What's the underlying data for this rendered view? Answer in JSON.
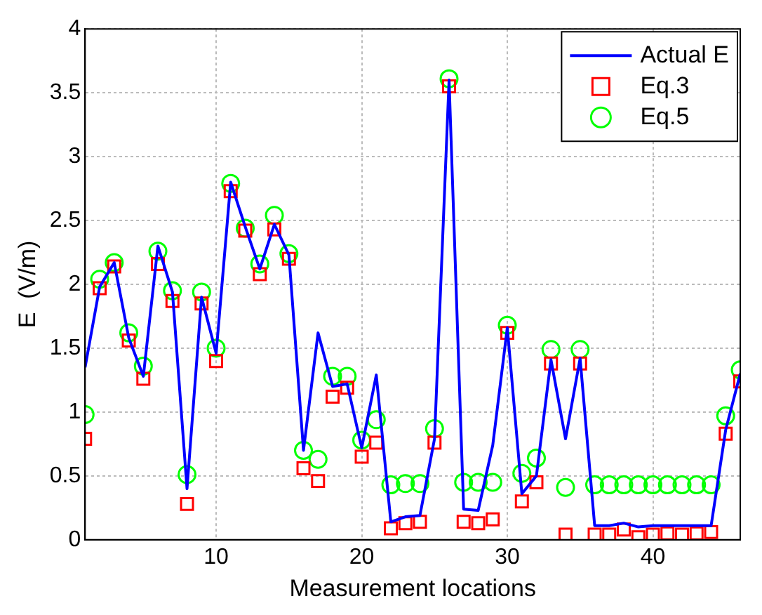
{
  "chart_data": {
    "type": "line",
    "xlabel": "Measurement locations",
    "ylabel": "E  (V/m)",
    "x": [
      1,
      2,
      3,
      4,
      5,
      6,
      7,
      8,
      9,
      10,
      11,
      12,
      13,
      14,
      15,
      16,
      17,
      18,
      19,
      20,
      21,
      22,
      23,
      24,
      25,
      26,
      27,
      28,
      29,
      30,
      31,
      32,
      33,
      34,
      35,
      36,
      37,
      38,
      39,
      40,
      41,
      42,
      43,
      44,
      45,
      46
    ],
    "series": [
      {
        "name": "Actual E",
        "marker": "none",
        "line_style": "solid",
        "color": "#0000ff",
        "values": [
          1.35,
          1.98,
          2.17,
          1.58,
          1.28,
          2.3,
          1.94,
          0.4,
          1.9,
          1.46,
          2.8,
          2.45,
          2.12,
          2.47,
          2.23,
          0.7,
          1.62,
          1.2,
          1.22,
          0.72,
          1.29,
          0.14,
          0.18,
          0.19,
          0.79,
          3.6,
          0.24,
          0.23,
          0.74,
          1.66,
          0.36,
          0.5,
          1.41,
          0.79,
          1.42,
          0.11,
          0.11,
          0.13,
          0.1,
          0.11,
          0.11,
          0.11,
          0.11,
          0.11,
          0.86,
          1.3
        ]
      },
      {
        "name": "Eq.3",
        "type": "scatter",
        "marker": "square",
        "color": "#ff0000",
        "values": [
          0.79,
          1.97,
          2.14,
          1.56,
          1.26,
          2.16,
          1.87,
          0.28,
          1.85,
          1.4,
          2.73,
          2.42,
          2.08,
          2.43,
          2.2,
          0.56,
          0.46,
          1.12,
          1.19,
          0.65,
          0.76,
          0.09,
          0.13,
          0.14,
          0.76,
          3.55,
          0.14,
          0.13,
          0.16,
          1.62,
          0.3,
          0.45,
          1.38,
          0.04,
          1.38,
          0.04,
          0.04,
          0.08,
          0.02,
          0.04,
          0.05,
          0.04,
          0.05,
          0.06,
          0.83,
          1.24
        ]
      },
      {
        "name": "Eq.5",
        "type": "scatter",
        "marker": "circle",
        "color": "#00ff00",
        "values": [
          0.98,
          2.04,
          2.17,
          1.62,
          1.36,
          2.26,
          1.95,
          0.51,
          1.94,
          1.5,
          2.79,
          2.44,
          2.16,
          2.54,
          2.24,
          0.7,
          0.63,
          1.28,
          1.28,
          0.78,
          0.94,
          0.43,
          0.44,
          0.44,
          0.87,
          3.61,
          0.45,
          0.45,
          0.45,
          1.68,
          0.52,
          0.64,
          1.49,
          0.41,
          1.49,
          0.43,
          0.43,
          0.43,
          0.43,
          0.43,
          0.43,
          0.43,
          0.43,
          0.43,
          0.97,
          1.33
        ]
      }
    ],
    "xlim": [
      1,
      46
    ],
    "xticks": [
      10,
      20,
      30,
      40
    ],
    "ylim": [
      0,
      4
    ],
    "yticks": [
      0,
      0.5,
      1,
      1.5,
      2,
      2.5,
      3,
      3.5,
      4
    ],
    "grid": true,
    "legend": "top right"
  }
}
